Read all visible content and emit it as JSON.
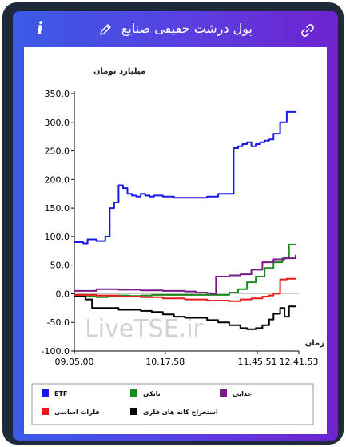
{
  "header": {
    "title": "پول درشت حقیقی صنایع",
    "info_icon": "i",
    "edit_icon": "pencil-icon",
    "link_icon": "link-icon"
  },
  "watermark": "LiveTSE.ir",
  "chart_data": {
    "type": "line",
    "ylabel": "میلیارد تومان",
    "xlabel": "زمان",
    "ylim": [
      -100,
      350
    ],
    "yticks": [
      "350.0",
      "300.0",
      "250.0",
      "200.0",
      "150.0",
      "100.0",
      "50.0",
      "0.0",
      "-50.0",
      "-100.0"
    ],
    "xticks": [
      "09.05.00",
      "10.17.58",
      "11.45.51",
      "12.41.53"
    ],
    "grid": "horizontal-zero-line",
    "legend_position": "bottom",
    "series": [
      {
        "name": "ETF",
        "color": "#1a1ae6",
        "x": [
          0,
          0.04,
          0.06,
          0.1,
          0.14,
          0.16,
          0.18,
          0.2,
          0.22,
          0.24,
          0.26,
          0.28,
          0.3,
          0.32,
          0.34,
          0.36,
          0.4,
          0.45,
          0.5,
          0.55,
          0.6,
          0.65,
          0.7,
          0.72,
          0.74,
          0.76,
          0.78,
          0.8,
          0.82,
          0.84,
          0.86,
          0.88,
          0.9,
          0.93,
          0.96,
          1.0
        ],
        "values": [
          90,
          88,
          95,
          92,
          100,
          150,
          160,
          190,
          185,
          175,
          172,
          170,
          175,
          172,
          170,
          172,
          170,
          168,
          168,
          168,
          170,
          175,
          175,
          255,
          258,
          262,
          265,
          258,
          262,
          265,
          268,
          270,
          280,
          300,
          318,
          318
        ]
      },
      {
        "name": "بانکی",
        "color": "#1a8a1a",
        "x": [
          0,
          0.05,
          0.1,
          0.15,
          0.2,
          0.25,
          0.3,
          0.35,
          0.4,
          0.45,
          0.5,
          0.55,
          0.6,
          0.65,
          0.7,
          0.74,
          0.78,
          0.82,
          0.86,
          0.9,
          0.94,
          0.97,
          1.0
        ],
        "values": [
          -2,
          -5,
          -6,
          -4,
          -3,
          -4,
          -3,
          -2,
          -2,
          -2,
          -2,
          -2,
          -2,
          -2,
          2,
          8,
          20,
          30,
          45,
          55,
          62,
          86,
          86
        ]
      },
      {
        "name": "غذایی",
        "color": "#7a1a8a",
        "x": [
          0,
          0.1,
          0.2,
          0.3,
          0.4,
          0.5,
          0.55,
          0.6,
          0.62,
          0.64,
          0.7,
          0.75,
          0.8,
          0.85,
          0.9,
          0.95,
          1.0
        ],
        "values": [
          5,
          8,
          7,
          6,
          5,
          4,
          2,
          1,
          0,
          30,
          32,
          34,
          42,
          55,
          60,
          62,
          68
        ]
      },
      {
        "name": "فلزات اساسی",
        "color": "#e61a1a",
        "x": [
          0,
          0.1,
          0.2,
          0.3,
          0.4,
          0.5,
          0.6,
          0.65,
          0.7,
          0.75,
          0.8,
          0.85,
          0.88,
          0.9,
          0.93,
          0.96,
          1.0
        ],
        "values": [
          -2,
          -3,
          -5,
          -6,
          -8,
          -10,
          -12,
          -12,
          -13,
          -10,
          -8,
          -5,
          -3,
          0,
          25,
          26,
          26
        ]
      },
      {
        "name": "استخراج کانه های فلزی",
        "color": "#000000",
        "x": [
          0,
          0.05,
          0.08,
          0.15,
          0.2,
          0.25,
          0.3,
          0.35,
          0.4,
          0.45,
          0.5,
          0.55,
          0.6,
          0.65,
          0.7,
          0.75,
          0.78,
          0.8,
          0.82,
          0.85,
          0.88,
          0.9,
          0.93,
          0.95,
          0.97,
          1.0
        ],
        "values": [
          -5,
          -10,
          -25,
          -25,
          -28,
          -28,
          -30,
          -32,
          -36,
          -40,
          -42,
          -42,
          -46,
          -50,
          -55,
          -60,
          -62,
          -62,
          -60,
          -55,
          -45,
          -35,
          -25,
          -40,
          -22,
          -22
        ]
      }
    ]
  }
}
